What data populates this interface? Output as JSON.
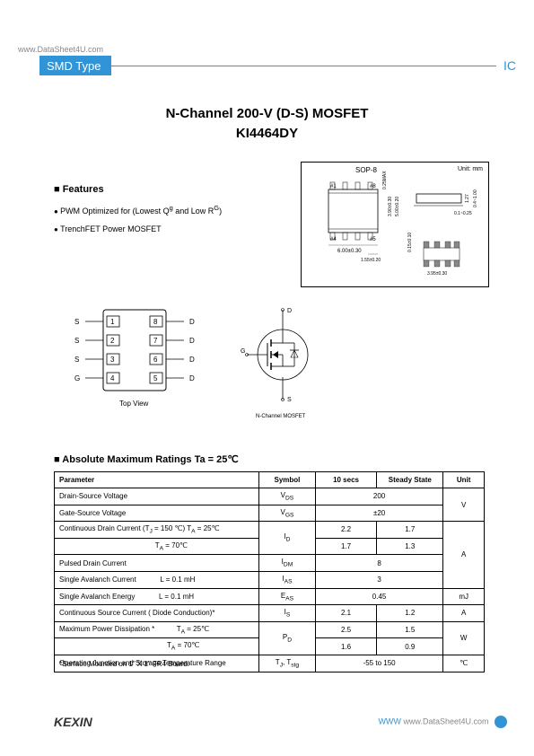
{
  "watermark_top": "www.DataSheet4U.com",
  "header": {
    "left": "SMD Type",
    "right": "IC"
  },
  "title": "N-Channel 200-V (D-S) MOSFET",
  "subtitle": "KI4464DY",
  "features": {
    "heading": "Features",
    "items": [
      "PWM Optimized for (Lowest Q<sup>g</sup> and Low R<sup>G</sup>)",
      "TrenchFET Power MOSFET"
    ]
  },
  "package": {
    "label": "SOP-8",
    "unit": "Unit: mm",
    "dims": [
      "6.00±0.30",
      "1.55±0.20",
      "0.15±0.10",
      "3.95±0.30",
      "5.00±0.20",
      "1.27",
      "0.25MAX",
      "3.90±0.30",
      "0.1~0.25",
      "0.4~1.00"
    ]
  },
  "pinout": {
    "pins_left": [
      "S",
      "S",
      "S",
      "G"
    ],
    "pins_right": [
      "D",
      "D",
      "D",
      "D"
    ],
    "caption": "Top View"
  },
  "mosfet": {
    "caption": "N-Channel MOSFET",
    "labels": [
      "D",
      "G",
      "S"
    ]
  },
  "ratings": {
    "heading": "Absolute Maximum Ratings Ta = 25℃",
    "columns": [
      "Parameter",
      "Symbol",
      "10 secs",
      "Steady State",
      "Unit"
    ],
    "rows": [
      {
        "param": "Drain-Source Voltage",
        "symbol": "V<sub>DS</sub>",
        "v1": "200",
        "v2": "",
        "unit": "V",
        "merge12": true,
        "mergeUnit": 2
      },
      {
        "param": "Gate-Source Voltage",
        "symbol": "V<sub>GS</sub>",
        "v1": "±20",
        "v2": "",
        "unit": "",
        "merge12": true
      },
      {
        "param": "Continuous Drain Current (T<sub>J</sub> = 150 ℃) T<sub>A</sub> = 25℃",
        "symbol": "I<sub>D</sub>",
        "v1": "2.2",
        "v2": "1.7",
        "unit": "A",
        "mergeSymbol": 2,
        "mergeUnit": 4
      },
      {
        "param": "&nbsp;&nbsp;&nbsp;&nbsp;&nbsp;&nbsp;&nbsp;&nbsp;&nbsp;&nbsp;&nbsp;&nbsp;&nbsp;&nbsp;&nbsp;&nbsp;&nbsp;&nbsp;&nbsp;&nbsp;&nbsp;&nbsp;&nbsp;&nbsp;&nbsp;&nbsp;&nbsp;&nbsp;&nbsp;&nbsp;&nbsp;&nbsp;&nbsp;&nbsp;&nbsp;&nbsp;&nbsp;&nbsp;&nbsp;&nbsp;&nbsp;&nbsp;&nbsp;&nbsp;&nbsp;&nbsp;&nbsp;&nbsp;T<sub>A</sub> = 70℃",
        "symbol": "",
        "v1": "1.7",
        "v2": "1.3",
        "unit": ""
      },
      {
        "param": "Pulsed Drain Current",
        "symbol": "I<sub>DM</sub>",
        "v1": "8",
        "v2": "",
        "unit": "",
        "merge12": true
      },
      {
        "param": "Single Avalanch Current&nbsp;&nbsp;&nbsp;&nbsp;&nbsp;&nbsp;&nbsp;&nbsp;&nbsp;&nbsp;&nbsp;&nbsp;L = 0.1 mH",
        "symbol": "I<sub>AS</sub>",
        "v1": "3",
        "v2": "",
        "unit": "",
        "merge12": true
      },
      {
        "param": "Single Avalanch Energy&nbsp;&nbsp;&nbsp;&nbsp;&nbsp;&nbsp;&nbsp;&nbsp;&nbsp;&nbsp;&nbsp;&nbsp;L = 0.1 mH",
        "symbol": "E<sub>AS</sub>",
        "v1": "0.45",
        "v2": "",
        "unit": "mJ",
        "merge12": true
      },
      {
        "param": "Continuous Source Current ( Diode Conduction)*",
        "symbol": "I<sub>S</sub>",
        "v1": "2.1",
        "v2": "1.2",
        "unit": "A"
      },
      {
        "param": "Maximum Power Dissipation *&nbsp;&nbsp;&nbsp;&nbsp;&nbsp;&nbsp;&nbsp;&nbsp;&nbsp;&nbsp;&nbsp;T<sub>A</sub> = 25℃",
        "symbol": "P<sub>D</sub>",
        "v1": "2.5",
        "v2": "1.5",
        "unit": "W",
        "mergeSymbol": 2,
        "mergeUnit": 2
      },
      {
        "param": "&nbsp;&nbsp;&nbsp;&nbsp;&nbsp;&nbsp;&nbsp;&nbsp;&nbsp;&nbsp;&nbsp;&nbsp;&nbsp;&nbsp;&nbsp;&nbsp;&nbsp;&nbsp;&nbsp;&nbsp;&nbsp;&nbsp;&nbsp;&nbsp;&nbsp;&nbsp;&nbsp;&nbsp;&nbsp;&nbsp;&nbsp;&nbsp;&nbsp;&nbsp;&nbsp;&nbsp;&nbsp;&nbsp;&nbsp;&nbsp;&nbsp;&nbsp;&nbsp;&nbsp;&nbsp;&nbsp;&nbsp;&nbsp;&nbsp;&nbsp;&nbsp;&nbsp;&nbsp;&nbsp;T<sub>A</sub> = 70℃",
        "symbol": "",
        "v1": "1.6",
        "v2": "0.9",
        "unit": ""
      },
      {
        "param": "Operating Junction and Storage Temperature Range",
        "symbol": "T<sub>J</sub>, T<sub>stg</sub>",
        "v1": "-55 to 150",
        "v2": "",
        "unit": "℃",
        "merge12": true
      }
    ],
    "footnote": "*Surface Mounted on 1\" X 1\" FR4 Board."
  },
  "footer": {
    "logo": "KEXIN",
    "right_prefix": "WWW",
    "right_ds4u": "www.DataSheet4U.com"
  },
  "colors": {
    "accent": "#3194d6",
    "text": "#000000",
    "gray": "#888888"
  }
}
